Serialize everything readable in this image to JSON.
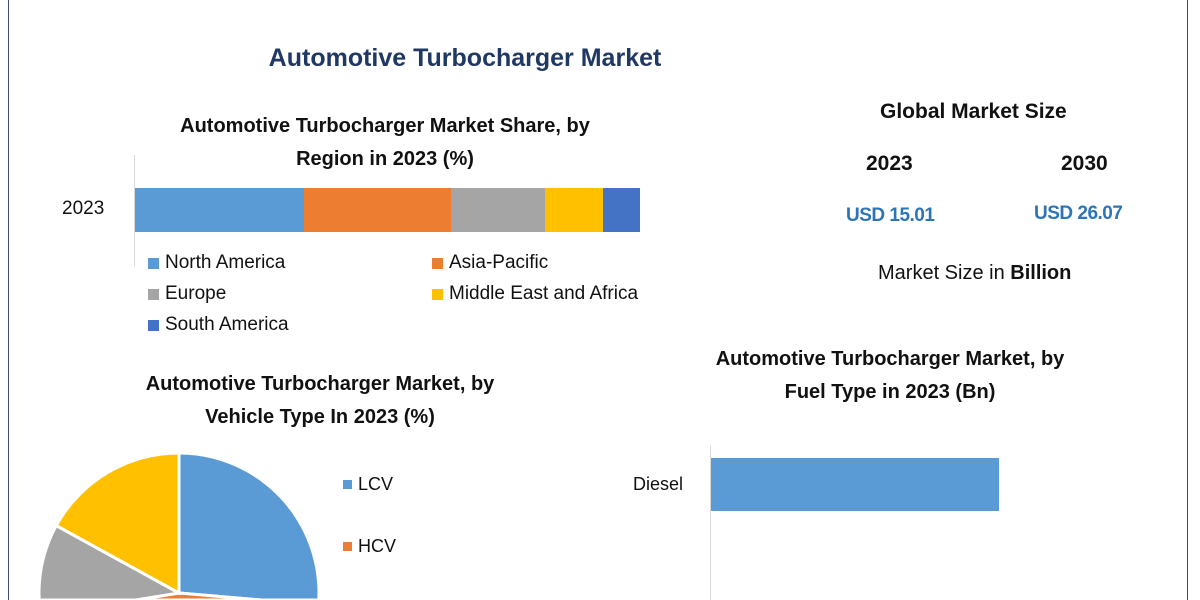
{
  "title": "Automotive Turbocharger Market",
  "market_size": {
    "heading": "Global Market Size",
    "years": [
      "2023",
      "2030"
    ],
    "values": [
      "USD 15.01",
      "USD 26.07"
    ],
    "unit_prefix": "Market Size in ",
    "unit_bold": "Billion",
    "value_color": "#2e75b6"
  },
  "chart_data": [
    {
      "type": "bar",
      "orientation": "horizontal-stacked",
      "title_line1": "Automotive Turbocharger Market Share, by",
      "title_line2": "Region in 2023 (%)",
      "categories": [
        "2023"
      ],
      "series": [
        {
          "name": "North America",
          "values": [
            33.4
          ],
          "color": "#5b9bd5"
        },
        {
          "name": "Asia-Pacific",
          "values": [
            29.1
          ],
          "color": "#ed7d31"
        },
        {
          "name": "Europe",
          "values": [
            18.6
          ],
          "color": "#a5a5a5"
        },
        {
          "name": "Middle East and Africa",
          "values": [
            11.5
          ],
          "color": "#ffc000"
        },
        {
          "name": "South America",
          "values": [
            7.4
          ],
          "color": "#4472c4"
        }
      ],
      "legend": "bottom",
      "grid": false
    },
    {
      "type": "pie",
      "title_line1": "Automotive Turbocharger Market, by",
      "title_line2": "Vehicle Type In 2023 (%)",
      "slices": [
        {
          "name": "LCV",
          "value": 40,
          "color": "#5b9bd5"
        },
        {
          "name": "HCV",
          "value": 15,
          "color": "#ed7d31"
        },
        {
          "value": 28,
          "color": "#a5a5a5"
        },
        {
          "value": 17,
          "color": "#ffc000"
        }
      ],
      "legend": "right"
    },
    {
      "type": "bar",
      "orientation": "horizontal",
      "title_line1": "Automotive Turbocharger Market, by",
      "title_line2": "Fuel Type in 2023 (Bn)",
      "categories": [
        "Diesel"
      ],
      "values": [
        0.62
      ],
      "value_note_scale": "relative",
      "color": "#5b9bd5",
      "grid": false
    }
  ]
}
